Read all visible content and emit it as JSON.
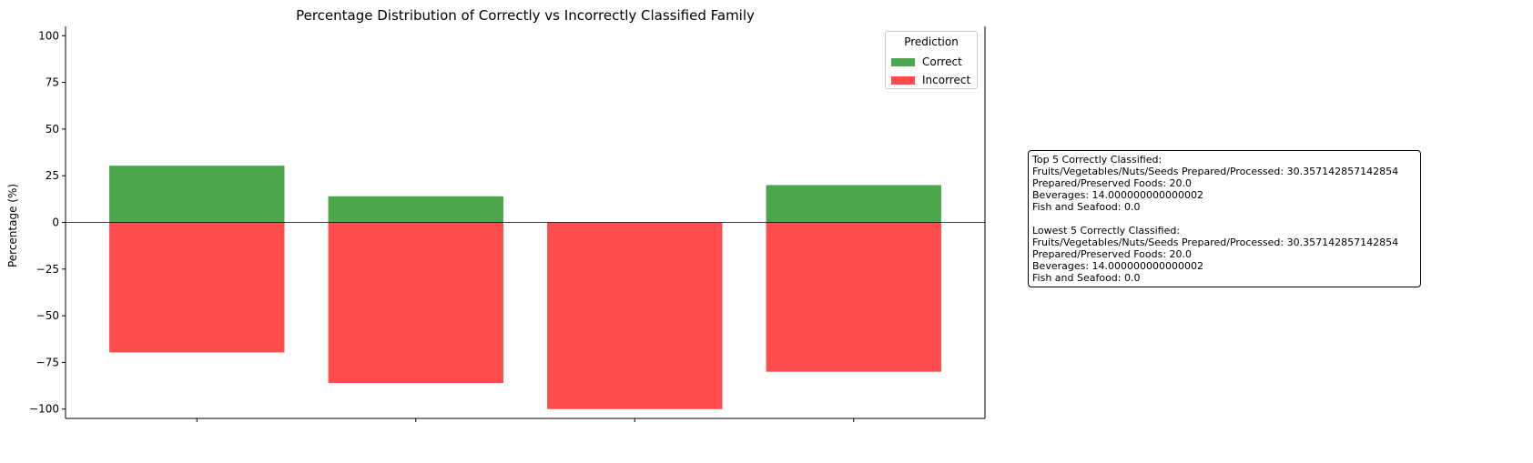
{
  "chart_data": {
    "type": "bar",
    "title": "Percentage Distribution of Correctly vs Incorrectly Classified Family",
    "xlabel": "",
    "ylabel": "Percentage (%)",
    "ylim": [
      -105,
      105
    ],
    "yticks": [
      100,
      75,
      50,
      25,
      0,
      -25,
      -50,
      -75,
      -100
    ],
    "ytick_labels": [
      "100",
      "75",
      "50",
      "25",
      "0",
      "−25",
      "−50",
      "−75",
      "−100"
    ],
    "categories": [
      "",
      "",
      "",
      ""
    ],
    "series": [
      {
        "name": "Correct",
        "color": "#4ca64c",
        "values": [
          30.357142857142854,
          14.000000000000002,
          0.0,
          20.0
        ]
      },
      {
        "name": "Incorrect",
        "color": "#ff4c4c",
        "values": [
          -69.64285714285714,
          -86.0,
          -100.0,
          -80.0
        ]
      }
    ],
    "legend": {
      "title": "Prediction",
      "placement": "top-right"
    },
    "grid": false
  },
  "infobox": {
    "lines": [
      "Top 5 Correctly Classified:",
      "Fruits/Vegetables/Nuts/Seeds Prepared/Processed: 30.357142857142854",
      "Prepared/Preserved Foods: 20.0",
      "Beverages: 14.000000000000002",
      "Fish and Seafood: 0.0",
      "",
      "Lowest 5 Correctly Classified:",
      "Fruits/Vegetables/Nuts/Seeds Prepared/Processed: 30.357142857142854",
      "Prepared/Preserved Foods: 20.0",
      "Beverages: 14.000000000000002",
      "Fish and Seafood: 0.0"
    ]
  }
}
